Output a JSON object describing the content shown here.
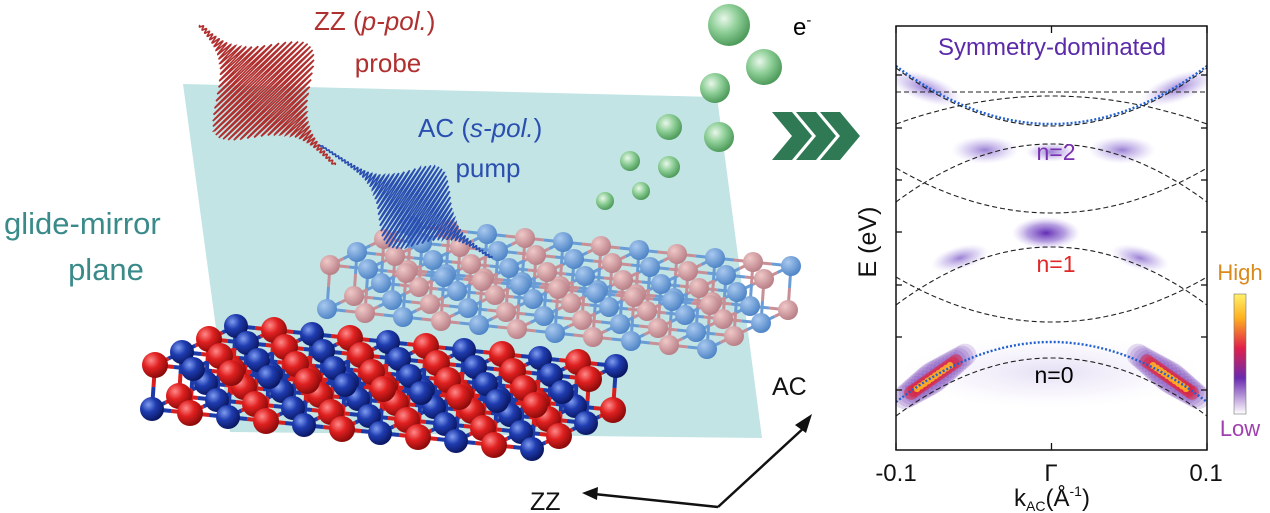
{
  "illustration": {
    "probe_label": {
      "prefix": "ZZ (",
      "pol": "p-pol.",
      "suffix": ")",
      "line2": "probe"
    },
    "pump_label": {
      "prefix": "AC (",
      "pol": "s-pol.",
      "suffix": ")",
      "line2": "pump"
    },
    "plane_label": {
      "line1": "glide-mirror",
      "line2": "plane"
    },
    "electron_label": "e",
    "electron_sup": "-",
    "axis_ac": "AC",
    "axis_zz": "ZZ",
    "colors": {
      "probe": "#b03030",
      "pump": "#2a4fb0",
      "plane": "#bfe3e3",
      "electron": "#5fb070",
      "atom_red": "#d81f1f",
      "atom_blue": "#1c3aa8",
      "arrow": "#2f7a55"
    }
  },
  "chart_data": {
    "type": "heatmap",
    "title": "Symmetry-dominated",
    "xlabel": "k",
    "xlabel_sub": "AC",
    "xlabel_unit": "(Å",
    "xlabel_unit_sup": "-1",
    "xlabel_unit_close": ")",
    "ylabel": "E (eV)",
    "x_ticks": [
      "-0.1",
      "Γ",
      "0.1"
    ],
    "xlim": [
      -0.1,
      0.1
    ],
    "band_labels": [
      {
        "text": "n=2",
        "color": "#7a2fb0"
      },
      {
        "text": "n=1",
        "color": "#e02828"
      },
      {
        "text": "n=0",
        "color": "#000000"
      }
    ],
    "colorbar": {
      "high": "High",
      "low": "Low",
      "high_color": "#d98a1a",
      "low_color": "#a040b0"
    },
    "grid": false
  }
}
